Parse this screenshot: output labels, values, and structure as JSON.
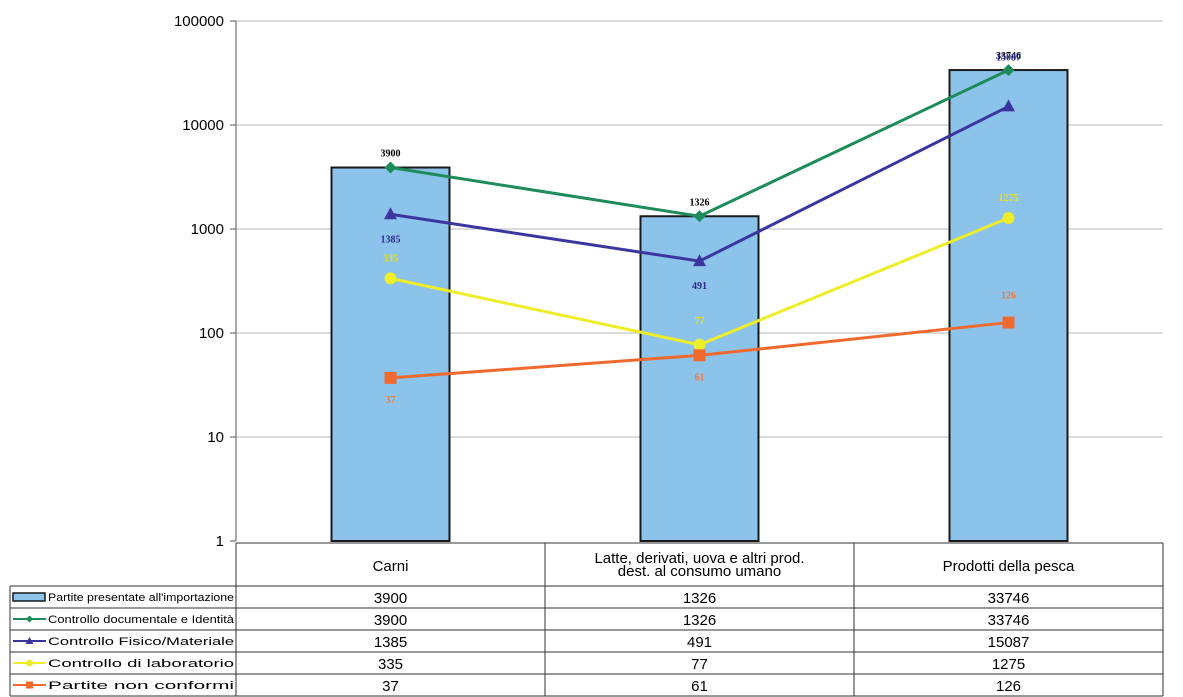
{
  "chart_data": {
    "type": "bar",
    "yscale": "log",
    "ylim": [
      1,
      100000
    ],
    "yticks": [
      "1",
      "10",
      "100",
      "1000",
      "10000",
      "100000"
    ],
    "grid": true,
    "legend": "data-table-left",
    "categories": [
      "Carni",
      [
        "Latte, derivati, uova e altri prod.",
        "dest. al consumo umano"
      ],
      "Prodotti della pesca"
    ],
    "series": [
      {
        "name": "Partite presentate all'importazione",
        "kind": "bar",
        "color": "#8cc3ea",
        "values": [
          3900,
          1326,
          33746
        ],
        "labels": [
          "3900",
          "1326",
          "33746"
        ],
        "label_color": "#000000"
      },
      {
        "name": "Controllo documentale e Identità",
        "kind": "line",
        "marker": "diamond",
        "color": "#1e8c5a",
        "values": [
          3900,
          1326,
          33746
        ]
      },
      {
        "name": "Controllo Fisico/Materiale",
        "kind": "line",
        "marker": "triangle",
        "color": "#3b35a0",
        "values": [
          1385,
          491,
          15087
        ],
        "labels": [
          "1385",
          "491",
          "15087"
        ],
        "label_color": "#2e2a8a"
      },
      {
        "name": "Controllo di laboratorio",
        "kind": "line",
        "marker": "circle",
        "color": "#eded2a",
        "values": [
          335,
          77,
          1275
        ],
        "labels": [
          "335",
          "77",
          "1275"
        ],
        "label_color": "#e6e21f"
      },
      {
        "name": "Partite non conformi",
        "kind": "line",
        "marker": "square",
        "color": "#f06a30",
        "values": [
          37,
          61,
          126
        ],
        "labels": [
          "37",
          "61",
          "126"
        ],
        "label_color": "#f07a45"
      }
    ],
    "table": {
      "rows": [
        [
          "3900",
          "1326",
          "33746"
        ],
        [
          "3900",
          "1326",
          "33746"
        ],
        [
          "1385",
          "491",
          "15087"
        ],
        [
          "335",
          "77",
          "1275"
        ],
        [
          "37",
          "61",
          "126"
        ]
      ]
    }
  }
}
